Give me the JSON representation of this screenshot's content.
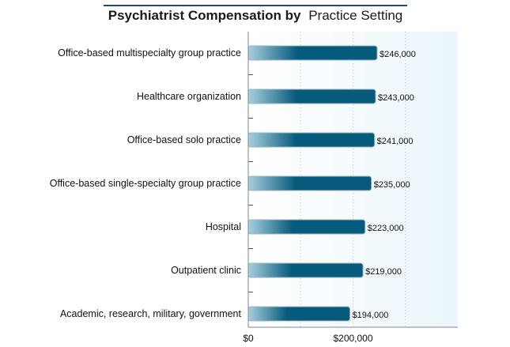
{
  "chart_data": {
    "type": "bar",
    "orientation": "horizontal",
    "title_bold": "Psychiatrist Compensation by",
    "title_rest": "Practice Setting",
    "categories": [
      "Office-based multispecialty group practice",
      "Healthcare organization",
      "Office-based solo practice",
      "Office-based single-specialty group practice",
      "Hospital",
      "Outpatient clinic",
      "Academic, research, military, government"
    ],
    "values": [
      246000,
      243000,
      241000,
      235000,
      223000,
      219000,
      194000
    ],
    "value_labels": [
      "$246,000",
      "$243,000",
      "$241,000",
      "$235,000",
      "$223,000",
      "$219,000",
      "$194,000"
    ],
    "xlim": [
      0,
      400000
    ],
    "xticks": [
      0,
      200000
    ],
    "xtick_labels": [
      "$0",
      "$200,000"
    ],
    "grid": true,
    "colors": {
      "bar_dark": "#065a7c",
      "bar_light": "#a8cfdd",
      "plot_bg": "#eaf6fc",
      "title_rule": "#1b4f72",
      "axis": "#7a8a94"
    }
  }
}
